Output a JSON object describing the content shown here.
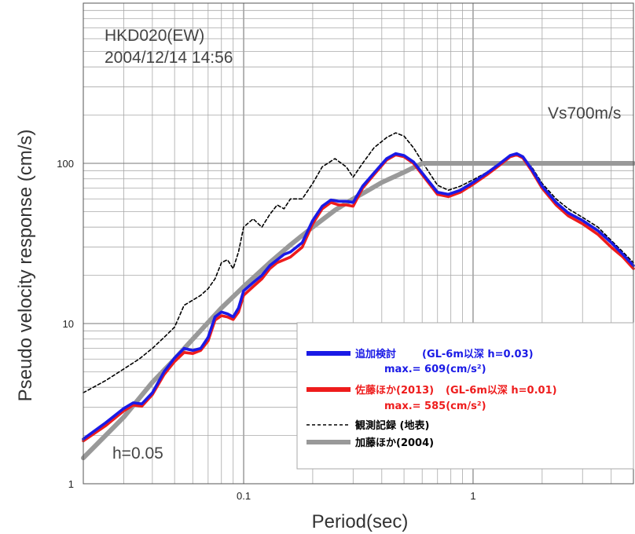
{
  "chart_data": {
    "type": "line",
    "xscale": "log",
    "yscale": "log",
    "xlim": [
      0.02,
      5
    ],
    "ylim": [
      1,
      1000
    ],
    "xlabel": "Period(sec)",
    "ylabel": "Pseudo velocity response (cm/s)",
    "x_tick_labels": [
      {
        "v": 0.1,
        "t": "0.1"
      },
      {
        "v": 1,
        "t": "1"
      }
    ],
    "y_tick_labels": [
      {
        "v": 1,
        "t": "1"
      },
      {
        "v": 10,
        "t": "10"
      },
      {
        "v": 100,
        "t": "100"
      }
    ],
    "grid": true,
    "annotations": {
      "station": "HKD020(EW)",
      "datetime": "2004/12/14 14:56",
      "damping": "h=0.05",
      "vs_label": "Vs700m/s"
    },
    "legend_position": "lower-right",
    "series": [
      {
        "name": "観測記録 (地表)",
        "label_main": "観測記録 (地表)",
        "color": "#000000",
        "style": "dashed",
        "points": [
          [
            0.02,
            3.7
          ],
          [
            0.025,
            4.4
          ],
          [
            0.03,
            5.2
          ],
          [
            0.035,
            6.0
          ],
          [
            0.04,
            7.0
          ],
          [
            0.045,
            8.2
          ],
          [
            0.05,
            9.5
          ],
          [
            0.055,
            13
          ],
          [
            0.06,
            14
          ],
          [
            0.065,
            15
          ],
          [
            0.07,
            16.5
          ],
          [
            0.075,
            19
          ],
          [
            0.08,
            24
          ],
          [
            0.085,
            25
          ],
          [
            0.09,
            22
          ],
          [
            0.095,
            28
          ],
          [
            0.1,
            40
          ],
          [
            0.11,
            45
          ],
          [
            0.12,
            40
          ],
          [
            0.13,
            48
          ],
          [
            0.14,
            55
          ],
          [
            0.15,
            52
          ],
          [
            0.16,
            60
          ],
          [
            0.18,
            60
          ],
          [
            0.2,
            75
          ],
          [
            0.22,
            95
          ],
          [
            0.25,
            107
          ],
          [
            0.28,
            95
          ],
          [
            0.3,
            82
          ],
          [
            0.33,
            100
          ],
          [
            0.37,
            125
          ],
          [
            0.42,
            145
          ],
          [
            0.46,
            155
          ],
          [
            0.5,
            148
          ],
          [
            0.55,
            125
          ],
          [
            0.62,
            95
          ],
          [
            0.7,
            73
          ],
          [
            0.78,
            68
          ],
          [
            0.88,
            72
          ],
          [
            1.0,
            79
          ],
          [
            1.15,
            88
          ],
          [
            1.3,
            100
          ],
          [
            1.45,
            111
          ],
          [
            1.55,
            113
          ],
          [
            1.65,
            110
          ],
          [
            1.8,
            95
          ],
          [
            2.0,
            75
          ],
          [
            2.3,
            60
          ],
          [
            2.6,
            52
          ],
          [
            3.0,
            46
          ],
          [
            3.5,
            40
          ],
          [
            4.0,
            33
          ],
          [
            4.5,
            28
          ],
          [
            5.0,
            24
          ]
        ]
      },
      {
        "name": "加藤ほか(2004)",
        "label_main": "加藤ほか(2004)",
        "color": "#999999",
        "style": "solid",
        "points": [
          [
            0.02,
            1.45
          ],
          [
            0.03,
            2.6
          ],
          [
            0.04,
            4.3
          ],
          [
            0.05,
            6.0
          ],
          [
            0.06,
            8.0
          ],
          [
            0.08,
            12.5
          ],
          [
            0.1,
            17
          ],
          [
            0.13,
            24
          ],
          [
            0.16,
            31
          ],
          [
            0.2,
            40
          ],
          [
            0.25,
            51
          ],
          [
            0.3,
            60
          ],
          [
            0.35,
            68
          ],
          [
            0.4,
            76
          ],
          [
            0.5,
            88
          ],
          [
            0.6,
            100
          ],
          [
            5.0,
            100
          ]
        ]
      },
      {
        "name": "佐藤ほか(2013)",
        "label_main": "佐藤ほか(2013)",
        "label_cond": "(GL-6m以深 h=0.01)",
        "label_max": "max.= 585(cm/s²)",
        "color": "#ee1c1c",
        "style": "solid",
        "points": [
          [
            0.02,
            1.85
          ],
          [
            0.025,
            2.3
          ],
          [
            0.03,
            2.85
          ],
          [
            0.033,
            3.1
          ],
          [
            0.036,
            3.05
          ],
          [
            0.04,
            3.6
          ],
          [
            0.045,
            4.8
          ],
          [
            0.05,
            5.8
          ],
          [
            0.055,
            6.6
          ],
          [
            0.06,
            6.5
          ],
          [
            0.065,
            6.8
          ],
          [
            0.07,
            7.8
          ],
          [
            0.075,
            10.5
          ],
          [
            0.08,
            11.2
          ],
          [
            0.085,
            11.0
          ],
          [
            0.09,
            10.6
          ],
          [
            0.095,
            11.8
          ],
          [
            0.1,
            15
          ],
          [
            0.11,
            17
          ],
          [
            0.12,
            19
          ],
          [
            0.13,
            22
          ],
          [
            0.14,
            24
          ],
          [
            0.15,
            25
          ],
          [
            0.16,
            26
          ],
          [
            0.18,
            30
          ],
          [
            0.2,
            42
          ],
          [
            0.22,
            52
          ],
          [
            0.24,
            57
          ],
          [
            0.26,
            55
          ],
          [
            0.28,
            55
          ],
          [
            0.3,
            54
          ],
          [
            0.33,
            70
          ],
          [
            0.37,
            85
          ],
          [
            0.42,
            105
          ],
          [
            0.46,
            113
          ],
          [
            0.5,
            110
          ],
          [
            0.55,
            100
          ],
          [
            0.62,
            80
          ],
          [
            0.7,
            64
          ],
          [
            0.78,
            62
          ],
          [
            0.88,
            66
          ],
          [
            1.0,
            74
          ],
          [
            1.15,
            85
          ],
          [
            1.3,
            97
          ],
          [
            1.45,
            110
          ],
          [
            1.55,
            113
          ],
          [
            1.65,
            108
          ],
          [
            1.8,
            90
          ],
          [
            2.0,
            70
          ],
          [
            2.3,
            55
          ],
          [
            2.6,
            47
          ],
          [
            3.0,
            42
          ],
          [
            3.5,
            36
          ],
          [
            4.0,
            30
          ],
          [
            4.5,
            26
          ],
          [
            5.0,
            22
          ]
        ]
      },
      {
        "name": "追加検討",
        "label_main": "追加検討",
        "label_cond": "(GL-6m以深 h=0.03)",
        "label_max": "max.= 609(cm/s²)",
        "color": "#1a1ae6",
        "style": "solid",
        "points": [
          [
            0.02,
            1.9
          ],
          [
            0.025,
            2.4
          ],
          [
            0.03,
            2.95
          ],
          [
            0.033,
            3.2
          ],
          [
            0.036,
            3.15
          ],
          [
            0.04,
            3.7
          ],
          [
            0.045,
            5.0
          ],
          [
            0.05,
            6.1
          ],
          [
            0.055,
            7.0
          ],
          [
            0.06,
            6.8
          ],
          [
            0.065,
            7.0
          ],
          [
            0.07,
            8.2
          ],
          [
            0.075,
            11
          ],
          [
            0.08,
            11.8
          ],
          [
            0.085,
            11.5
          ],
          [
            0.09,
            11
          ],
          [
            0.095,
            12.5
          ],
          [
            0.1,
            16
          ],
          [
            0.11,
            18
          ],
          [
            0.12,
            20
          ],
          [
            0.13,
            23
          ],
          [
            0.14,
            25
          ],
          [
            0.15,
            27
          ],
          [
            0.16,
            28
          ],
          [
            0.18,
            32
          ],
          [
            0.2,
            44
          ],
          [
            0.22,
            54
          ],
          [
            0.24,
            59
          ],
          [
            0.26,
            58
          ],
          [
            0.28,
            58
          ],
          [
            0.3,
            57
          ],
          [
            0.33,
            72
          ],
          [
            0.37,
            87
          ],
          [
            0.42,
            107
          ],
          [
            0.46,
            115
          ],
          [
            0.5,
            112
          ],
          [
            0.55,
            102
          ],
          [
            0.62,
            82
          ],
          [
            0.7,
            66
          ],
          [
            0.78,
            64
          ],
          [
            0.88,
            68
          ],
          [
            1.0,
            76
          ],
          [
            1.15,
            87
          ],
          [
            1.3,
            99
          ],
          [
            1.45,
            112
          ],
          [
            1.55,
            115
          ],
          [
            1.65,
            110
          ],
          [
            1.8,
            92
          ],
          [
            2.0,
            72
          ],
          [
            2.3,
            57
          ],
          [
            2.6,
            49
          ],
          [
            3.0,
            44
          ],
          [
            3.5,
            38
          ],
          [
            4.0,
            32
          ],
          [
            4.5,
            27
          ],
          [
            5.0,
            23
          ]
        ]
      }
    ]
  }
}
